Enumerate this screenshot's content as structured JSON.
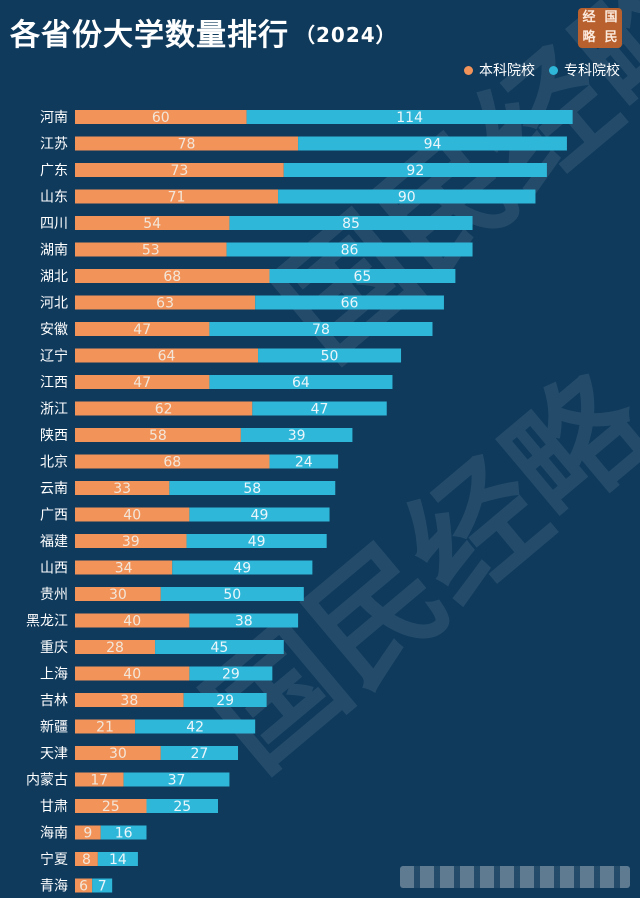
{
  "title": "各省份大学数量排行",
  "subtitle": "（2024）",
  "seal_text": [
    "国",
    "经",
    "民",
    "略"
  ],
  "watermark": "国民经略",
  "colors": {
    "background": "#0f3a5c",
    "undergraduate": "#f2935a",
    "vocational": "#2fb7d9"
  },
  "legend": [
    {
      "label": "本科院校",
      "color": "#f2935a"
    },
    {
      "label": "专科院校",
      "color": "#2fb7d9"
    }
  ],
  "chart_data": {
    "type": "bar",
    "orientation": "horizontal",
    "stacked": true,
    "title": "各省份大学数量排行（2024）",
    "categories": [
      "河南",
      "江苏",
      "广东",
      "山东",
      "四川",
      "湖南",
      "湖北",
      "河北",
      "安徽",
      "辽宁",
      "江西",
      "浙江",
      "陕西",
      "北京",
      "云南",
      "广西",
      "福建",
      "山西",
      "贵州",
      "黑龙江",
      "重庆",
      "上海",
      "吉林",
      "新疆",
      "天津",
      "内蒙古",
      "甘肃",
      "海南",
      "宁夏",
      "青海"
    ],
    "series": [
      {
        "name": "本科院校",
        "color": "#f2935a",
        "values": [
          60,
          78,
          73,
          71,
          54,
          53,
          68,
          63,
          47,
          64,
          47,
          62,
          58,
          68,
          33,
          40,
          39,
          34,
          30,
          40,
          28,
          40,
          38,
          21,
          30,
          17,
          25,
          9,
          8,
          6
        ]
      },
      {
        "name": "专科院校",
        "color": "#2fb7d9",
        "values": [
          114,
          94,
          92,
          90,
          85,
          86,
          65,
          66,
          78,
          50,
          64,
          47,
          39,
          24,
          58,
          49,
          49,
          49,
          50,
          38,
          45,
          29,
          29,
          42,
          27,
          37,
          25,
          16,
          14,
          7
        ]
      }
    ],
    "xlim": [
      0,
      174
    ],
    "legend_position": "top-right",
    "grid": false
  }
}
